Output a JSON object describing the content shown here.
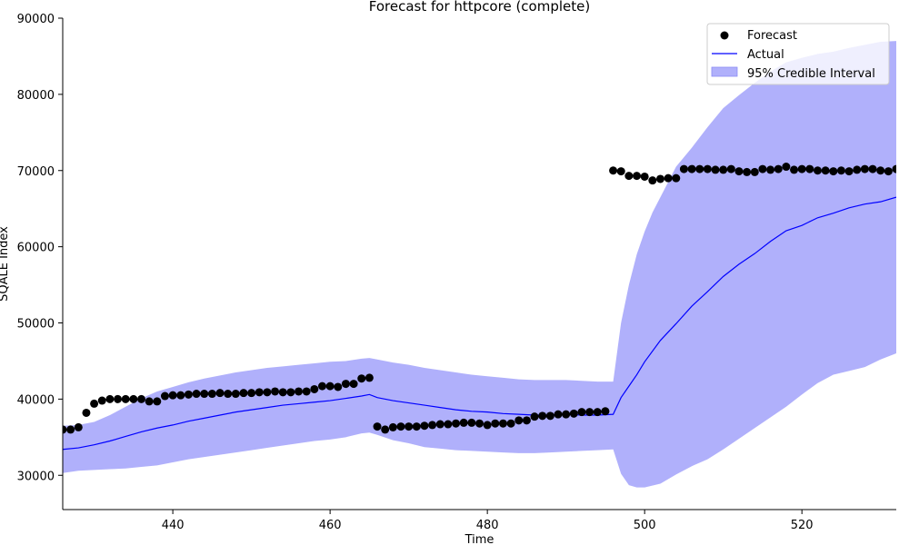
{
  "chart_data": {
    "type": "line",
    "title": "Forecast for httpcore (complete)",
    "xlabel": "Time",
    "ylabel": "SQALE Index",
    "xlim": [
      426,
      532
    ],
    "ylim": [
      25500,
      90000
    ],
    "xticks": [
      440,
      460,
      480,
      500,
      520
    ],
    "yticks": [
      30000,
      40000,
      50000,
      60000,
      70000,
      80000,
      90000
    ],
    "grid": false,
    "legend_position": "upper right",
    "legend": [
      {
        "label": "Forecast",
        "kind": "marker",
        "color": "#000000"
      },
      {
        "label": "Actual",
        "kind": "line",
        "color": "#0000ff"
      },
      {
        "label": "95% Credible Interval",
        "kind": "patch",
        "color": "#b0b0fb"
      }
    ],
    "series": [
      {
        "name": "Forecast",
        "kind": "scatter",
        "color": "#000000",
        "points": [
          [
            426,
            36000
          ],
          [
            427,
            36000
          ],
          [
            428,
            36300
          ],
          [
            429,
            38200
          ],
          [
            430,
            39400
          ],
          [
            431,
            39800
          ],
          [
            432,
            40000
          ],
          [
            433,
            40000
          ],
          [
            434,
            40000
          ],
          [
            435,
            40000
          ],
          [
            436,
            40000
          ],
          [
            437,
            39700
          ],
          [
            438,
            39700
          ],
          [
            439,
            40400
          ],
          [
            440,
            40500
          ],
          [
            441,
            40500
          ],
          [
            442,
            40600
          ],
          [
            443,
            40700
          ],
          [
            444,
            40700
          ],
          [
            445,
            40700
          ],
          [
            446,
            40800
          ],
          [
            447,
            40700
          ],
          [
            448,
            40700
          ],
          [
            449,
            40800
          ],
          [
            450,
            40800
          ],
          [
            451,
            40900
          ],
          [
            452,
            40900
          ],
          [
            453,
            41000
          ],
          [
            454,
            40900
          ],
          [
            455,
            40900
          ],
          [
            456,
            41000
          ],
          [
            457,
            41000
          ],
          [
            458,
            41300
          ],
          [
            459,
            41700
          ],
          [
            460,
            41700
          ],
          [
            461,
            41600
          ],
          [
            462,
            42000
          ],
          [
            463,
            42000
          ],
          [
            464,
            42700
          ],
          [
            465,
            42800
          ],
          [
            466,
            36400
          ],
          [
            467,
            36000
          ],
          [
            468,
            36300
          ],
          [
            469,
            36400
          ],
          [
            470,
            36400
          ],
          [
            471,
            36400
          ],
          [
            472,
            36500
          ],
          [
            473,
            36600
          ],
          [
            474,
            36700
          ],
          [
            475,
            36700
          ],
          [
            476,
            36800
          ],
          [
            477,
            36900
          ],
          [
            478,
            36900
          ],
          [
            479,
            36800
          ],
          [
            480,
            36600
          ],
          [
            481,
            36800
          ],
          [
            482,
            36800
          ],
          [
            483,
            36800
          ],
          [
            484,
            37200
          ],
          [
            485,
            37200
          ],
          [
            486,
            37700
          ],
          [
            487,
            37800
          ],
          [
            488,
            37800
          ],
          [
            489,
            38000
          ],
          [
            490,
            38000
          ],
          [
            491,
            38100
          ],
          [
            492,
            38300
          ],
          [
            493,
            38300
          ],
          [
            494,
            38300
          ],
          [
            495,
            38400
          ],
          [
            496,
            70000
          ],
          [
            497,
            69900
          ],
          [
            498,
            69300
          ],
          [
            499,
            69300
          ],
          [
            500,
            69200
          ],
          [
            501,
            68700
          ],
          [
            502,
            68900
          ],
          [
            503,
            69000
          ],
          [
            504,
            69000
          ],
          [
            505,
            70200
          ],
          [
            506,
            70200
          ],
          [
            507,
            70200
          ],
          [
            508,
            70200
          ],
          [
            509,
            70100
          ],
          [
            510,
            70100
          ],
          [
            511,
            70200
          ],
          [
            512,
            69900
          ],
          [
            513,
            69800
          ],
          [
            514,
            69800
          ],
          [
            515,
            70200
          ],
          [
            516,
            70100
          ],
          [
            517,
            70200
          ],
          [
            518,
            70500
          ],
          [
            519,
            70100
          ],
          [
            520,
            70200
          ],
          [
            521,
            70200
          ],
          [
            522,
            70000
          ],
          [
            523,
            70000
          ],
          [
            524,
            69900
          ],
          [
            525,
            70000
          ],
          [
            526,
            69900
          ],
          [
            527,
            70100
          ],
          [
            528,
            70200
          ],
          [
            529,
            70200
          ],
          [
            530,
            70000
          ],
          [
            531,
            69900
          ],
          [
            532,
            70200
          ]
        ]
      },
      {
        "name": "Actual",
        "kind": "line",
        "color": "#0000ff",
        "points": [
          [
            426,
            33400
          ],
          [
            428,
            33600
          ],
          [
            430,
            34000
          ],
          [
            432,
            34500
          ],
          [
            434,
            35100
          ],
          [
            436,
            35700
          ],
          [
            438,
            36200
          ],
          [
            440,
            36600
          ],
          [
            442,
            37100
          ],
          [
            444,
            37500
          ],
          [
            446,
            37900
          ],
          [
            448,
            38300
          ],
          [
            450,
            38600
          ],
          [
            452,
            38900
          ],
          [
            454,
            39200
          ],
          [
            456,
            39400
          ],
          [
            458,
            39600
          ],
          [
            460,
            39800
          ],
          [
            462,
            40100
          ],
          [
            464,
            40400
          ],
          [
            465,
            40600
          ],
          [
            466,
            40200
          ],
          [
            468,
            39800
          ],
          [
            470,
            39500
          ],
          [
            472,
            39200
          ],
          [
            474,
            38900
          ],
          [
            476,
            38600
          ],
          [
            478,
            38400
          ],
          [
            480,
            38300
          ],
          [
            482,
            38100
          ],
          [
            484,
            38000
          ],
          [
            486,
            37900
          ],
          [
            488,
            37900
          ],
          [
            490,
            38000
          ],
          [
            492,
            37900
          ],
          [
            494,
            37900
          ],
          [
            496,
            38000
          ],
          [
            497,
            40200
          ],
          [
            498,
            41700
          ],
          [
            499,
            43200
          ],
          [
            500,
            44900
          ],
          [
            502,
            47700
          ],
          [
            504,
            49900
          ],
          [
            506,
            52200
          ],
          [
            508,
            54100
          ],
          [
            510,
            56100
          ],
          [
            512,
            57700
          ],
          [
            514,
            59100
          ],
          [
            516,
            60700
          ],
          [
            518,
            62100
          ],
          [
            520,
            62800
          ],
          [
            522,
            63800
          ],
          [
            524,
            64400
          ],
          [
            526,
            65100
          ],
          [
            528,
            65600
          ],
          [
            530,
            65900
          ],
          [
            532,
            66500
          ]
        ]
      },
      {
        "name": "95% Credible Interval",
        "kind": "band",
        "color": "#b0b0fb",
        "upper": [
          [
            426,
            36500
          ],
          [
            428,
            36600
          ],
          [
            430,
            37000
          ],
          [
            432,
            37900
          ],
          [
            434,
            39000
          ],
          [
            436,
            40100
          ],
          [
            438,
            41000
          ],
          [
            440,
            41600
          ],
          [
            442,
            42200
          ],
          [
            444,
            42700
          ],
          [
            446,
            43100
          ],
          [
            448,
            43500
          ],
          [
            450,
            43800
          ],
          [
            452,
            44100
          ],
          [
            454,
            44300
          ],
          [
            456,
            44500
          ],
          [
            458,
            44700
          ],
          [
            460,
            44900
          ],
          [
            462,
            45000
          ],
          [
            464,
            45300
          ],
          [
            465,
            45400
          ],
          [
            466,
            45200
          ],
          [
            468,
            44800
          ],
          [
            470,
            44500
          ],
          [
            472,
            44100
          ],
          [
            474,
            43800
          ],
          [
            476,
            43500
          ],
          [
            478,
            43200
          ],
          [
            480,
            43000
          ],
          [
            482,
            42800
          ],
          [
            484,
            42600
          ],
          [
            486,
            42500
          ],
          [
            488,
            42500
          ],
          [
            490,
            42500
          ],
          [
            492,
            42400
          ],
          [
            494,
            42300
          ],
          [
            496,
            42300
          ],
          [
            497,
            50000
          ],
          [
            498,
            55000
          ],
          [
            499,
            59000
          ],
          [
            500,
            62000
          ],
          [
            501,
            64500
          ],
          [
            502,
            66500
          ],
          [
            503,
            68500
          ],
          [
            504,
            70500
          ],
          [
            506,
            73000
          ],
          [
            508,
            75700
          ],
          [
            510,
            78200
          ],
          [
            512,
            79900
          ],
          [
            514,
            81500
          ],
          [
            516,
            83000
          ],
          [
            518,
            84200
          ],
          [
            520,
            84800
          ],
          [
            522,
            85300
          ],
          [
            524,
            85600
          ],
          [
            526,
            86100
          ],
          [
            528,
            86500
          ],
          [
            530,
            86900
          ],
          [
            532,
            87000
          ]
        ],
        "lower": [
          [
            426,
            30300
          ],
          [
            428,
            30600
          ],
          [
            430,
            30700
          ],
          [
            432,
            30800
          ],
          [
            434,
            30900
          ],
          [
            436,
            31100
          ],
          [
            438,
            31300
          ],
          [
            440,
            31700
          ],
          [
            442,
            32100
          ],
          [
            444,
            32400
          ],
          [
            446,
            32700
          ],
          [
            448,
            33000
          ],
          [
            450,
            33300
          ],
          [
            452,
            33600
          ],
          [
            454,
            33900
          ],
          [
            456,
            34200
          ],
          [
            458,
            34500
          ],
          [
            460,
            34700
          ],
          [
            462,
            35000
          ],
          [
            464,
            35500
          ],
          [
            465,
            35600
          ],
          [
            466,
            35300
          ],
          [
            468,
            34600
          ],
          [
            470,
            34200
          ],
          [
            472,
            33700
          ],
          [
            474,
            33500
          ],
          [
            476,
            33300
          ],
          [
            478,
            33200
          ],
          [
            480,
            33100
          ],
          [
            482,
            33000
          ],
          [
            484,
            32900
          ],
          [
            486,
            32900
          ],
          [
            488,
            33000
          ],
          [
            490,
            33100
          ],
          [
            492,
            33200
          ],
          [
            494,
            33300
          ],
          [
            496,
            33400
          ],
          [
            497,
            30200
          ],
          [
            498,
            28700
          ],
          [
            499,
            28400
          ],
          [
            500,
            28400
          ],
          [
            502,
            28900
          ],
          [
            504,
            30100
          ],
          [
            506,
            31200
          ],
          [
            508,
            32100
          ],
          [
            510,
            33400
          ],
          [
            512,
            34800
          ],
          [
            514,
            36200
          ],
          [
            516,
            37600
          ],
          [
            518,
            39000
          ],
          [
            520,
            40600
          ],
          [
            522,
            42100
          ],
          [
            524,
            43200
          ],
          [
            526,
            43700
          ],
          [
            528,
            44200
          ],
          [
            530,
            45200
          ],
          [
            532,
            46000
          ]
        ]
      }
    ]
  }
}
